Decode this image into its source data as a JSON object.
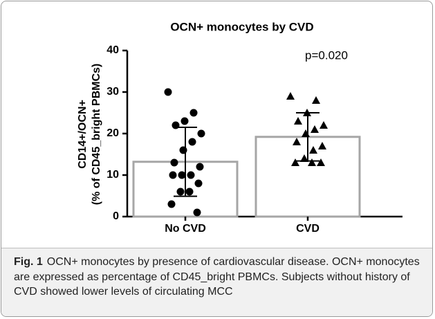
{
  "chart_data": {
    "type": "bar",
    "title": "OCN+ monocytes by CVD",
    "y_label": [
      "CD14+/OCN+",
      "(% of CD45_bright PBMCs)"
    ],
    "categories": [
      "No CVD",
      "CVD"
    ],
    "values": [
      13.2,
      19.2
    ],
    "errors": [
      8.3,
      5.8
    ],
    "points": [
      [
        30,
        25,
        23,
        22,
        20,
        18,
        16,
        13,
        12,
        10,
        10,
        10,
        8,
        6,
        6,
        3,
        1
      ],
      [
        29,
        28,
        25,
        23,
        22,
        21,
        20,
        18,
        17,
        16,
        14,
        13,
        13,
        13
      ]
    ],
    "markers": [
      "circle",
      "triangle"
    ],
    "bar_fill": "#ffffff",
    "bar_stroke": "#a6a6a6",
    "point_color": "#000000",
    "ylim": [
      0,
      40
    ],
    "yticks": [
      0,
      10,
      20,
      30,
      40
    ],
    "annotation": "p=0.020"
  },
  "caption": {
    "label": "Fig. 1",
    "text": "OCN+ monocytes by presence of cardiovascular disease. OCN+ monocytes are expressed as percentage of CD45_bright PBMCs. Subjects without history of CVD showed lower levels of circulating MCC"
  }
}
